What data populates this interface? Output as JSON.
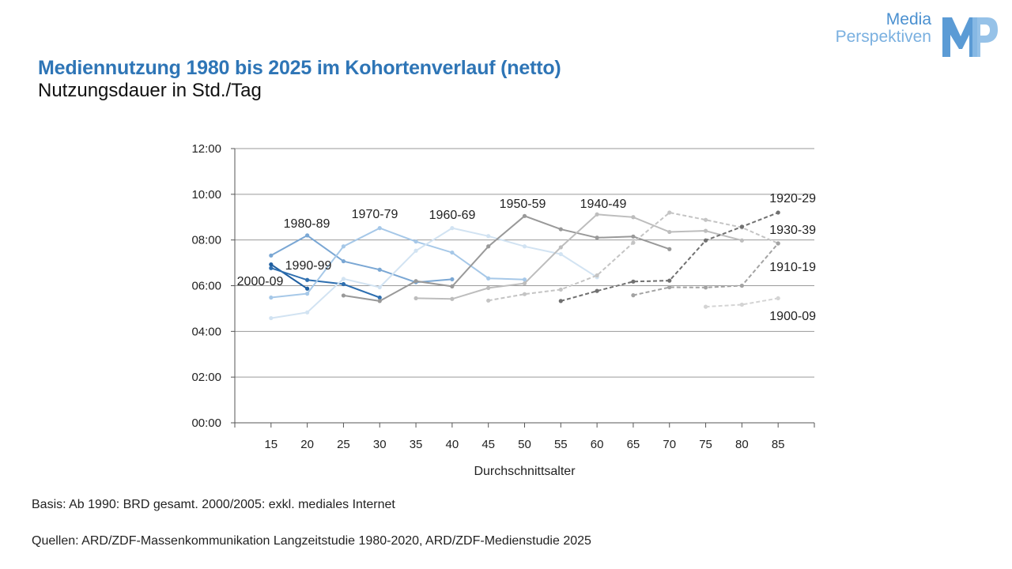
{
  "title": "Mediennutzung 1980 bis 2025 im Kohortenverlauf (netto)",
  "subtitle": "Nutzungsdauer in Std./Tag",
  "logo": {
    "line1": "Media",
    "line2": "Perspektiven",
    "mark": "MP",
    "color": "#5b9bd5"
  },
  "notes": {
    "basis": "Basis: Ab 1990: BRD gesamt. 2000/2005: exkl. mediales Internet",
    "sources": "Quellen: ARD/ZDF-Massenkommunikation Langzeitstudie 1980-2020, ARD/ZDF-Medienstudie 2025"
  },
  "chart_data": {
    "type": "line",
    "title": "Mediennutzung 1980 bis 2025 im Kohortenverlauf (netto)",
    "subtitle": "Nutzungsdauer in Std./Tag",
    "xlabel": "Durchschnittsalter",
    "ylabel": "",
    "x_ticks": [
      15,
      20,
      25,
      30,
      35,
      40,
      45,
      50,
      55,
      60,
      65,
      70,
      75,
      80,
      85
    ],
    "y_ticks": [
      "00:00",
      "02:00",
      "04:00",
      "06:00",
      "08:00",
      "10:00",
      "12:00"
    ],
    "ylim": [
      0,
      12
    ],
    "xlim": [
      10,
      90
    ],
    "y_unit": "hours",
    "grid": "horizontal",
    "series": [
      {
        "name": "2000-09",
        "color": "#1f5fa0",
        "dash": false,
        "points": [
          [
            15,
            6.93
          ],
          [
            20,
            5.87
          ]
        ]
      },
      {
        "name": "1990-99",
        "color": "#2e6fb0",
        "dash": false,
        "points": [
          [
            15,
            6.77
          ],
          [
            20,
            6.25
          ],
          [
            25,
            6.07
          ],
          [
            30,
            5.48
          ]
        ]
      },
      {
        "name": "1980-89",
        "color": "#7aa7d4",
        "dash": false,
        "points": [
          [
            15,
            7.32
          ],
          [
            20,
            8.2
          ],
          [
            25,
            7.07
          ],
          [
            30,
            6.7
          ],
          [
            35,
            6.15
          ],
          [
            40,
            6.28
          ]
        ]
      },
      {
        "name": "1970-79",
        "color": "#a6c8e8",
        "dash": false,
        "points": [
          [
            15,
            5.48
          ],
          [
            20,
            5.65
          ],
          [
            25,
            7.72
          ],
          [
            30,
            8.52
          ],
          [
            35,
            7.93
          ],
          [
            40,
            7.45
          ],
          [
            45,
            6.32
          ],
          [
            50,
            6.27
          ]
        ]
      },
      {
        "name": "1960-69",
        "color": "#d2e3f2",
        "dash": false,
        "points": [
          [
            15,
            4.58
          ],
          [
            20,
            4.83
          ],
          [
            25,
            6.3
          ],
          [
            30,
            5.93
          ],
          [
            35,
            7.53
          ],
          [
            40,
            8.52
          ],
          [
            45,
            8.17
          ],
          [
            50,
            7.72
          ],
          [
            55,
            7.38
          ],
          [
            60,
            6.37
          ]
        ]
      },
      {
        "name": "1950-59",
        "color": "#999999",
        "dash": false,
        "points": [
          [
            25,
            5.57
          ],
          [
            30,
            5.33
          ],
          [
            35,
            6.2
          ],
          [
            40,
            5.97
          ],
          [
            45,
            7.72
          ],
          [
            50,
            9.05
          ],
          [
            55,
            8.47
          ],
          [
            60,
            8.1
          ],
          [
            65,
            8.15
          ],
          [
            70,
            7.6
          ]
        ]
      },
      {
        "name": "1940-49",
        "color": "#bdbdbd",
        "dash": false,
        "points": [
          [
            35,
            5.45
          ],
          [
            40,
            5.42
          ],
          [
            45,
            5.9
          ],
          [
            50,
            6.1
          ],
          [
            55,
            7.68
          ],
          [
            60,
            9.12
          ],
          [
            65,
            9.0
          ],
          [
            70,
            8.35
          ],
          [
            75,
            8.4
          ],
          [
            80,
            7.98
          ]
        ]
      },
      {
        "name": "1930-39",
        "color": "#c4c4c4",
        "dash": true,
        "points": [
          [
            45,
            5.35
          ],
          [
            50,
            5.63
          ],
          [
            55,
            5.83
          ],
          [
            60,
            6.45
          ],
          [
            65,
            7.88
          ],
          [
            70,
            9.2
          ],
          [
            75,
            8.88
          ],
          [
            80,
            8.55
          ],
          [
            85,
            7.85
          ]
        ]
      },
      {
        "name": "1920-29",
        "color": "#707070",
        "dash": true,
        "points": [
          [
            55,
            5.33
          ],
          [
            60,
            5.77
          ],
          [
            65,
            6.18
          ],
          [
            70,
            6.22
          ],
          [
            75,
            7.98
          ],
          [
            80,
            8.58
          ],
          [
            85,
            9.2
          ]
        ]
      },
      {
        "name": "1910-19",
        "color": "#a3a3a3",
        "dash": true,
        "points": [
          [
            65,
            5.58
          ],
          [
            70,
            5.93
          ],
          [
            75,
            5.92
          ],
          [
            80,
            6.0
          ],
          [
            85,
            7.85
          ]
        ]
      },
      {
        "name": "1900-09",
        "color": "#d4d4d4",
        "dash": true,
        "points": [
          [
            75,
            5.08
          ],
          [
            80,
            5.17
          ],
          [
            85,
            5.45
          ]
        ]
      }
    ],
    "labels": [
      {
        "text": "2000-09",
        "series": "2000-09"
      },
      {
        "text": "1990-99",
        "series": "1990-99"
      },
      {
        "text": "1980-89",
        "series": "1980-89"
      },
      {
        "text": "1970-79",
        "series": "1970-79"
      },
      {
        "text": "1960-69",
        "series": "1960-69"
      },
      {
        "text": "1950-59",
        "series": "1950-59"
      },
      {
        "text": "1940-49",
        "series": "1940-49"
      },
      {
        "text": "1920-29",
        "series": "1920-29"
      },
      {
        "text": "1930-39",
        "series": "1930-39"
      },
      {
        "text": "1910-19",
        "series": "1910-19"
      },
      {
        "text": "1900-09",
        "series": "1900-09"
      }
    ]
  }
}
